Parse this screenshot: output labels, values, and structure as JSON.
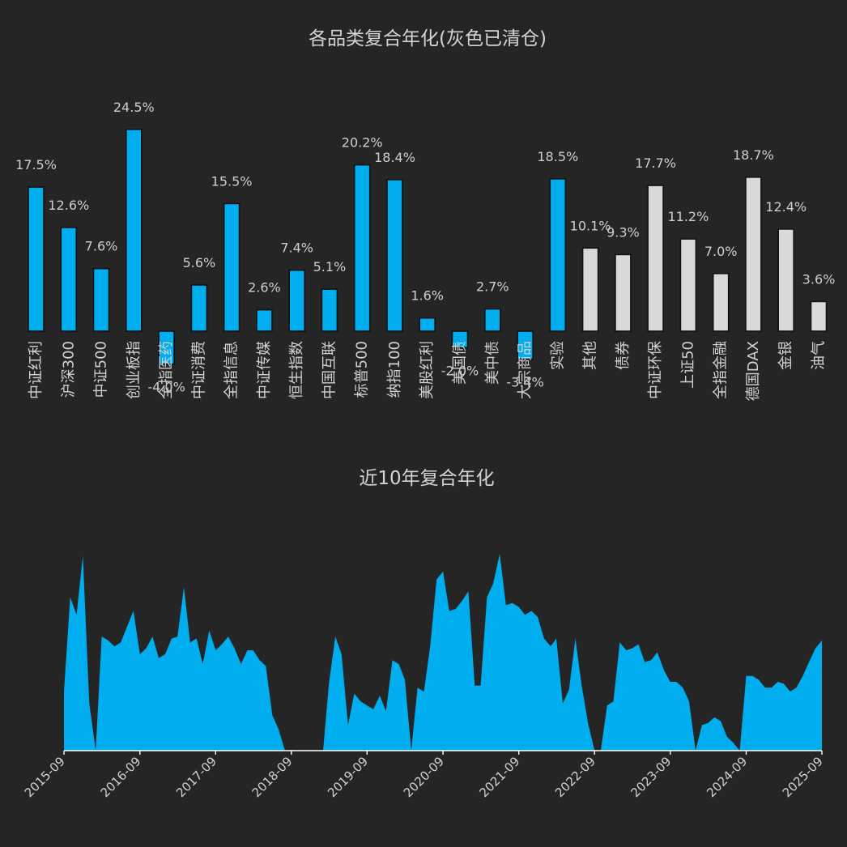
{
  "chart_data": [
    {
      "type": "bar",
      "title": "各品类复合年化(灰色已清仓)",
      "label_suffix": "%",
      "colors": {
        "active": "#00aeef",
        "cleared": "#d9d9d9",
        "edge": "#111111"
      },
      "categories": [
        "中证红利",
        "沪深300",
        "中证500",
        "创业板指",
        "全指医药",
        "中证消费",
        "全指信息",
        "中证传媒",
        "恒生指数",
        "中国互联",
        "标普500",
        "纳指100",
        "美股红利",
        "美国债",
        "美中债",
        "大宗商品",
        "实验",
        "其他",
        "债券",
        "中证环保",
        "上证50",
        "全指金融",
        "德国DAX",
        "金银",
        "油气"
      ],
      "values": [
        17.5,
        12.6,
        7.6,
        24.5,
        -4.0,
        5.6,
        15.5,
        2.6,
        7.4,
        5.1,
        20.2,
        18.4,
        1.6,
        -2.0,
        2.7,
        -3.4,
        18.5,
        10.1,
        9.3,
        17.7,
        11.2,
        7.0,
        18.7,
        12.4,
        3.6
      ],
      "labels": [
        "17.5%",
        "12.6%",
        "7.6%",
        "24.5%",
        "-4.0%",
        "5.6%",
        "15.5%",
        "2.6%",
        "7.4%",
        "5.1%",
        "20.2%",
        "18.4%",
        "1.6%",
        "-2.0%",
        "2.7%",
        "-3.4%",
        "18.5%",
        "10.1%",
        "9.3%",
        "17.7%",
        "11.2%",
        "7.0%",
        "18.7%",
        "12.4%",
        "3.6%"
      ],
      "cleared": [
        false,
        false,
        false,
        false,
        false,
        false,
        false,
        false,
        false,
        false,
        false,
        false,
        false,
        false,
        false,
        false,
        false,
        true,
        true,
        true,
        true,
        true,
        true,
        true,
        true
      ],
      "ylim": [
        -4.6,
        26.3
      ]
    },
    {
      "type": "area",
      "title": "近10年复合年化",
      "color": "#00aeef",
      "x_ticks": [
        "2015-09",
        "2016-09",
        "2017-09",
        "2018-09",
        "2019-09",
        "2020-09",
        "2021-09",
        "2022-09",
        "2023-09",
        "2024-09",
        "2025-09"
      ],
      "x_range": [
        "2015-09-01",
        "2025-09-01"
      ],
      "x": [
        "2015-09",
        "2015-10",
        "2015-11",
        "2015-12",
        "2016-01",
        "2016-02",
        "2016-03",
        "2016-04",
        "2016-05",
        "2016-06",
        "2016-07",
        "2016-08",
        "2016-09",
        "2016-10",
        "2016-11",
        "2016-12",
        "2017-01",
        "2017-02",
        "2017-03",
        "2017-04",
        "2017-05",
        "2017-06",
        "2017-07",
        "2017-08",
        "2017-09",
        "2017-10",
        "2017-11",
        "2017-12",
        "2018-01",
        "2018-02",
        "2018-03",
        "2018-04",
        "2018-05",
        "2018-06",
        "2018-07",
        "2018-08",
        "2018-09",
        "2018-10",
        "2018-11",
        "2018-12",
        "2019-01",
        "2019-02",
        "2019-03",
        "2019-04",
        "2019-05",
        "2019-06",
        "2019-07",
        "2019-08",
        "2019-09",
        "2019-10",
        "2019-11",
        "2019-12",
        "2020-01",
        "2020-02",
        "2020-03",
        "2020-04",
        "2020-05",
        "2020-06",
        "2020-07",
        "2020-08",
        "2020-09",
        "2020-10",
        "2020-11",
        "2020-12",
        "2021-01",
        "2021-02",
        "2021-03",
        "2021-04",
        "2021-05",
        "2021-06",
        "2021-07",
        "2021-08",
        "2021-09",
        "2021-10",
        "2021-11",
        "2021-12",
        "2022-01",
        "2022-02",
        "2022-03",
        "2022-04",
        "2022-05",
        "2022-06",
        "2022-07",
        "2022-08",
        "2022-09",
        "2022-10",
        "2022-11",
        "2022-12",
        "2023-01",
        "2023-02",
        "2023-03",
        "2023-04",
        "2023-05",
        "2023-06",
        "2023-07",
        "2023-08",
        "2023-09",
        "2023-10",
        "2023-11",
        "2023-12",
        "2024-01",
        "2024-02",
        "2024-03",
        "2024-04",
        "2024-05",
        "2024-06",
        "2024-07",
        "2024-08",
        "2024-09",
        "2024-10",
        "2024-11",
        "2024-12",
        "2025-01",
        "2025-02",
        "2025-03",
        "2025-04",
        "2025-05",
        "2025-06",
        "2025-07",
        "2025-08",
        "2025-09"
      ],
      "values": [
        0.3,
        0.78,
        0.69,
        0.99,
        0.24,
        0,
        0.58,
        0.56,
        0.53,
        0.55,
        0.63,
        0.71,
        0.49,
        0.52,
        0.58,
        0.47,
        0.49,
        0.57,
        0.58,
        0.83,
        0.55,
        0.57,
        0.44,
        0.61,
        0.51,
        0.54,
        0.58,
        0.52,
        0.44,
        0.51,
        0.51,
        0.46,
        0.43,
        0.18,
        0.11,
        0,
        0,
        0,
        0,
        0,
        0,
        0,
        0.34,
        0.58,
        0.49,
        0.13,
        0.29,
        0.25,
        0.23,
        0.21,
        0.28,
        0.2,
        0.46,
        0.44,
        0.36,
        0.0,
        0.32,
        0.3,
        0.53,
        0.87,
        0.91,
        0.71,
        0.72,
        0.76,
        0.81,
        0.33,
        0.33,
        0.78,
        0.85,
        1.0,
        0.74,
        0.75,
        0.73,
        0.69,
        0.71,
        0.68,
        0.57,
        0.53,
        0.57,
        0.24,
        0.31,
        0.57,
        0.33,
        0.14,
        0,
        0,
        0.23,
        0.25,
        0.55,
        0.51,
        0.52,
        0.54,
        0.45,
        0.46,
        0.5,
        0.41,
        0.35,
        0.35,
        0.32,
        0.25,
        0,
        0.13,
        0.14,
        0.17,
        0.15,
        0.07,
        0.04,
        0,
        0.38,
        0.38,
        0.36,
        0.32,
        0.32,
        0.35,
        0.34,
        0.3,
        0.32,
        0.38,
        0.45,
        0.52,
        0.56
      ]
    }
  ]
}
